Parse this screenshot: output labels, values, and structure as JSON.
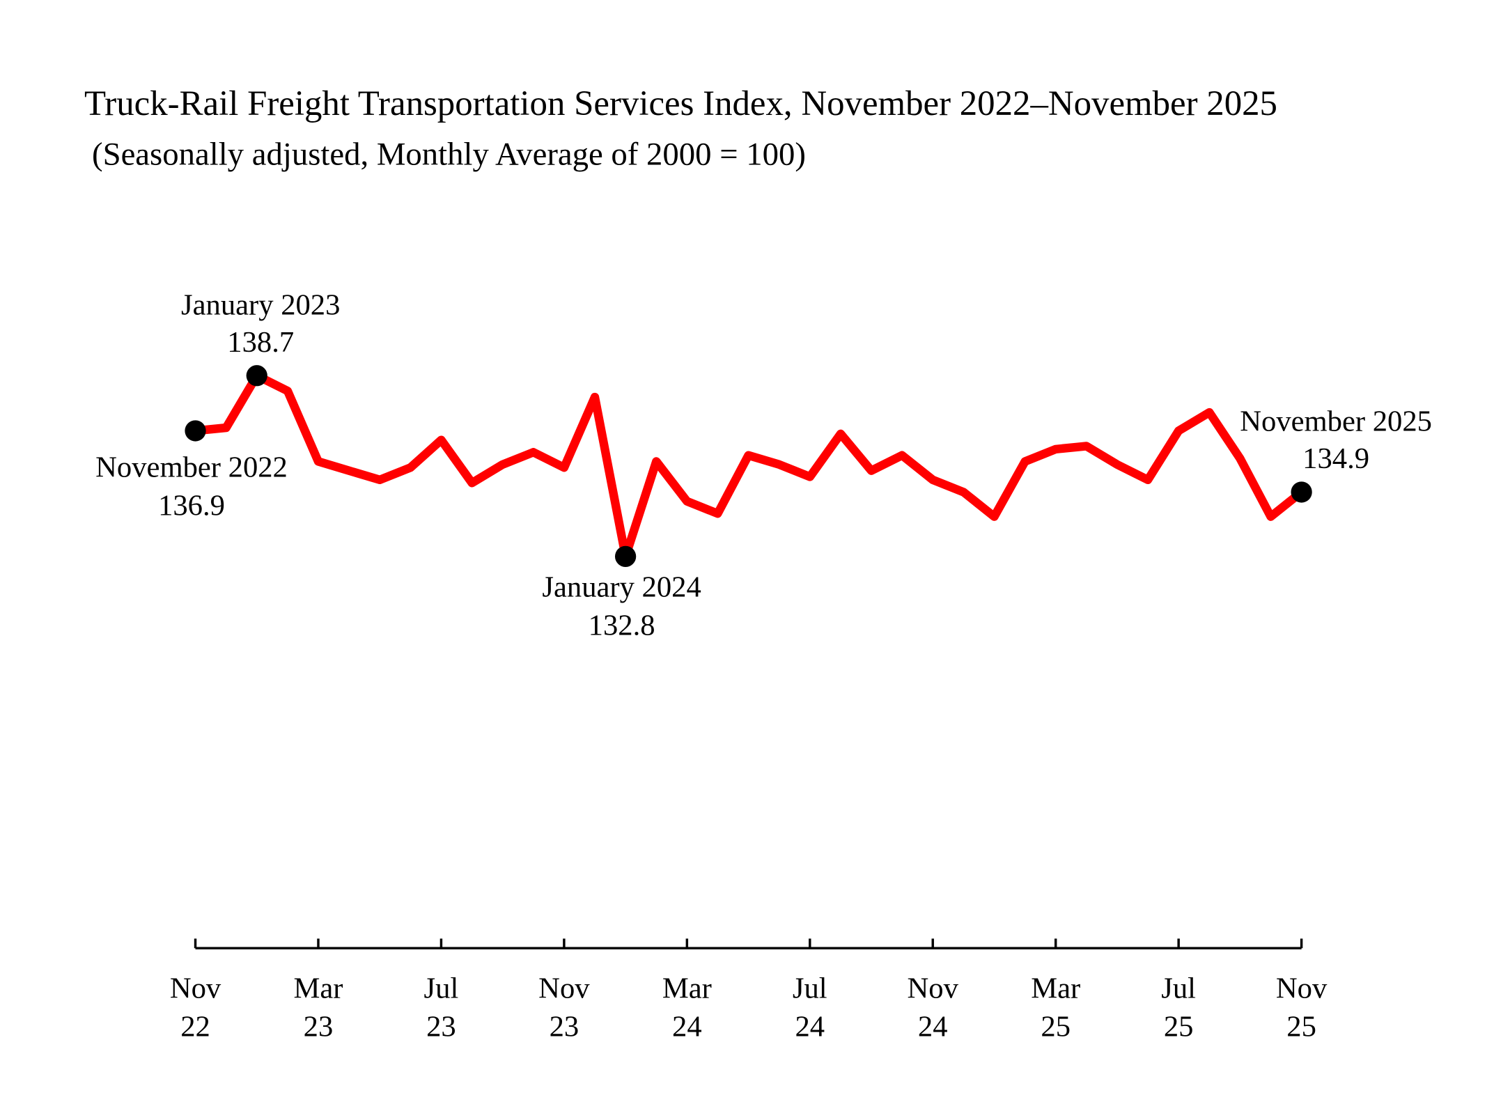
{
  "chart_data": {
    "type": "line",
    "title": "Truck-Rail Freight Transportation Services Index, November 2022–November 2025",
    "subtitle": "(Seasonally adjusted, Monthly Average of 2000 = 100)",
    "xlabel": "",
    "ylabel": "",
    "grid": false,
    "legend": "none",
    "x": [
      "2022-11",
      "2022-12",
      "2023-01",
      "2023-02",
      "2023-03",
      "2023-04",
      "2023-05",
      "2023-06",
      "2023-07",
      "2023-08",
      "2023-09",
      "2023-10",
      "2023-11",
      "2023-12",
      "2024-01",
      "2024-02",
      "2024-03",
      "2024-04",
      "2024-05",
      "2024-06",
      "2024-07",
      "2024-08",
      "2024-09",
      "2024-10",
      "2024-11",
      "2024-12",
      "2025-01",
      "2025-02",
      "2025-03",
      "2025-04",
      "2025-05",
      "2025-06",
      "2025-07",
      "2025-08",
      "2025-09",
      "2025-10",
      "2025-11"
    ],
    "series": [
      {
        "color": "#ff0000",
        "values": [
          136.9,
          137.0,
          138.7,
          138.2,
          135.9,
          135.6,
          135.3,
          135.7,
          136.6,
          135.2,
          135.8,
          136.2,
          135.7,
          138.0,
          132.8,
          135.9,
          134.6,
          134.2,
          136.1,
          135.8,
          135.4,
          136.8,
          135.6,
          136.1,
          135.3,
          134.9,
          134.1,
          135.9,
          136.3,
          136.4,
          135.8,
          135.3,
          136.9,
          137.5,
          136.0,
          134.1,
          134.9
        ]
      }
    ],
    "x_ticks": [
      {
        "month": "Nov",
        "year": "22"
      },
      {
        "month": "Mar",
        "year": "23"
      },
      {
        "month": "Jul",
        "year": "23"
      },
      {
        "month": "Nov",
        "year": "23"
      },
      {
        "month": "Mar",
        "year": "24"
      },
      {
        "month": "Jul",
        "year": "24"
      },
      {
        "month": "Nov",
        "year": "24"
      },
      {
        "month": "Mar",
        "year": "25"
      },
      {
        "month": "Jul",
        "year": "25"
      },
      {
        "month": "Nov",
        "year": "25"
      }
    ],
    "annotations": [
      {
        "label": "November 2022",
        "value": "136.9",
        "x": "2022-11"
      },
      {
        "label": "January 2023",
        "value": "138.7",
        "x": "2023-01"
      },
      {
        "label": "January 2024",
        "value": "132.8",
        "x": "2024-01"
      },
      {
        "label": "November 2025",
        "value": "134.9",
        "x": "2025-11"
      }
    ],
    "marker_color": "#000000",
    "y_axis_shown": false
  }
}
